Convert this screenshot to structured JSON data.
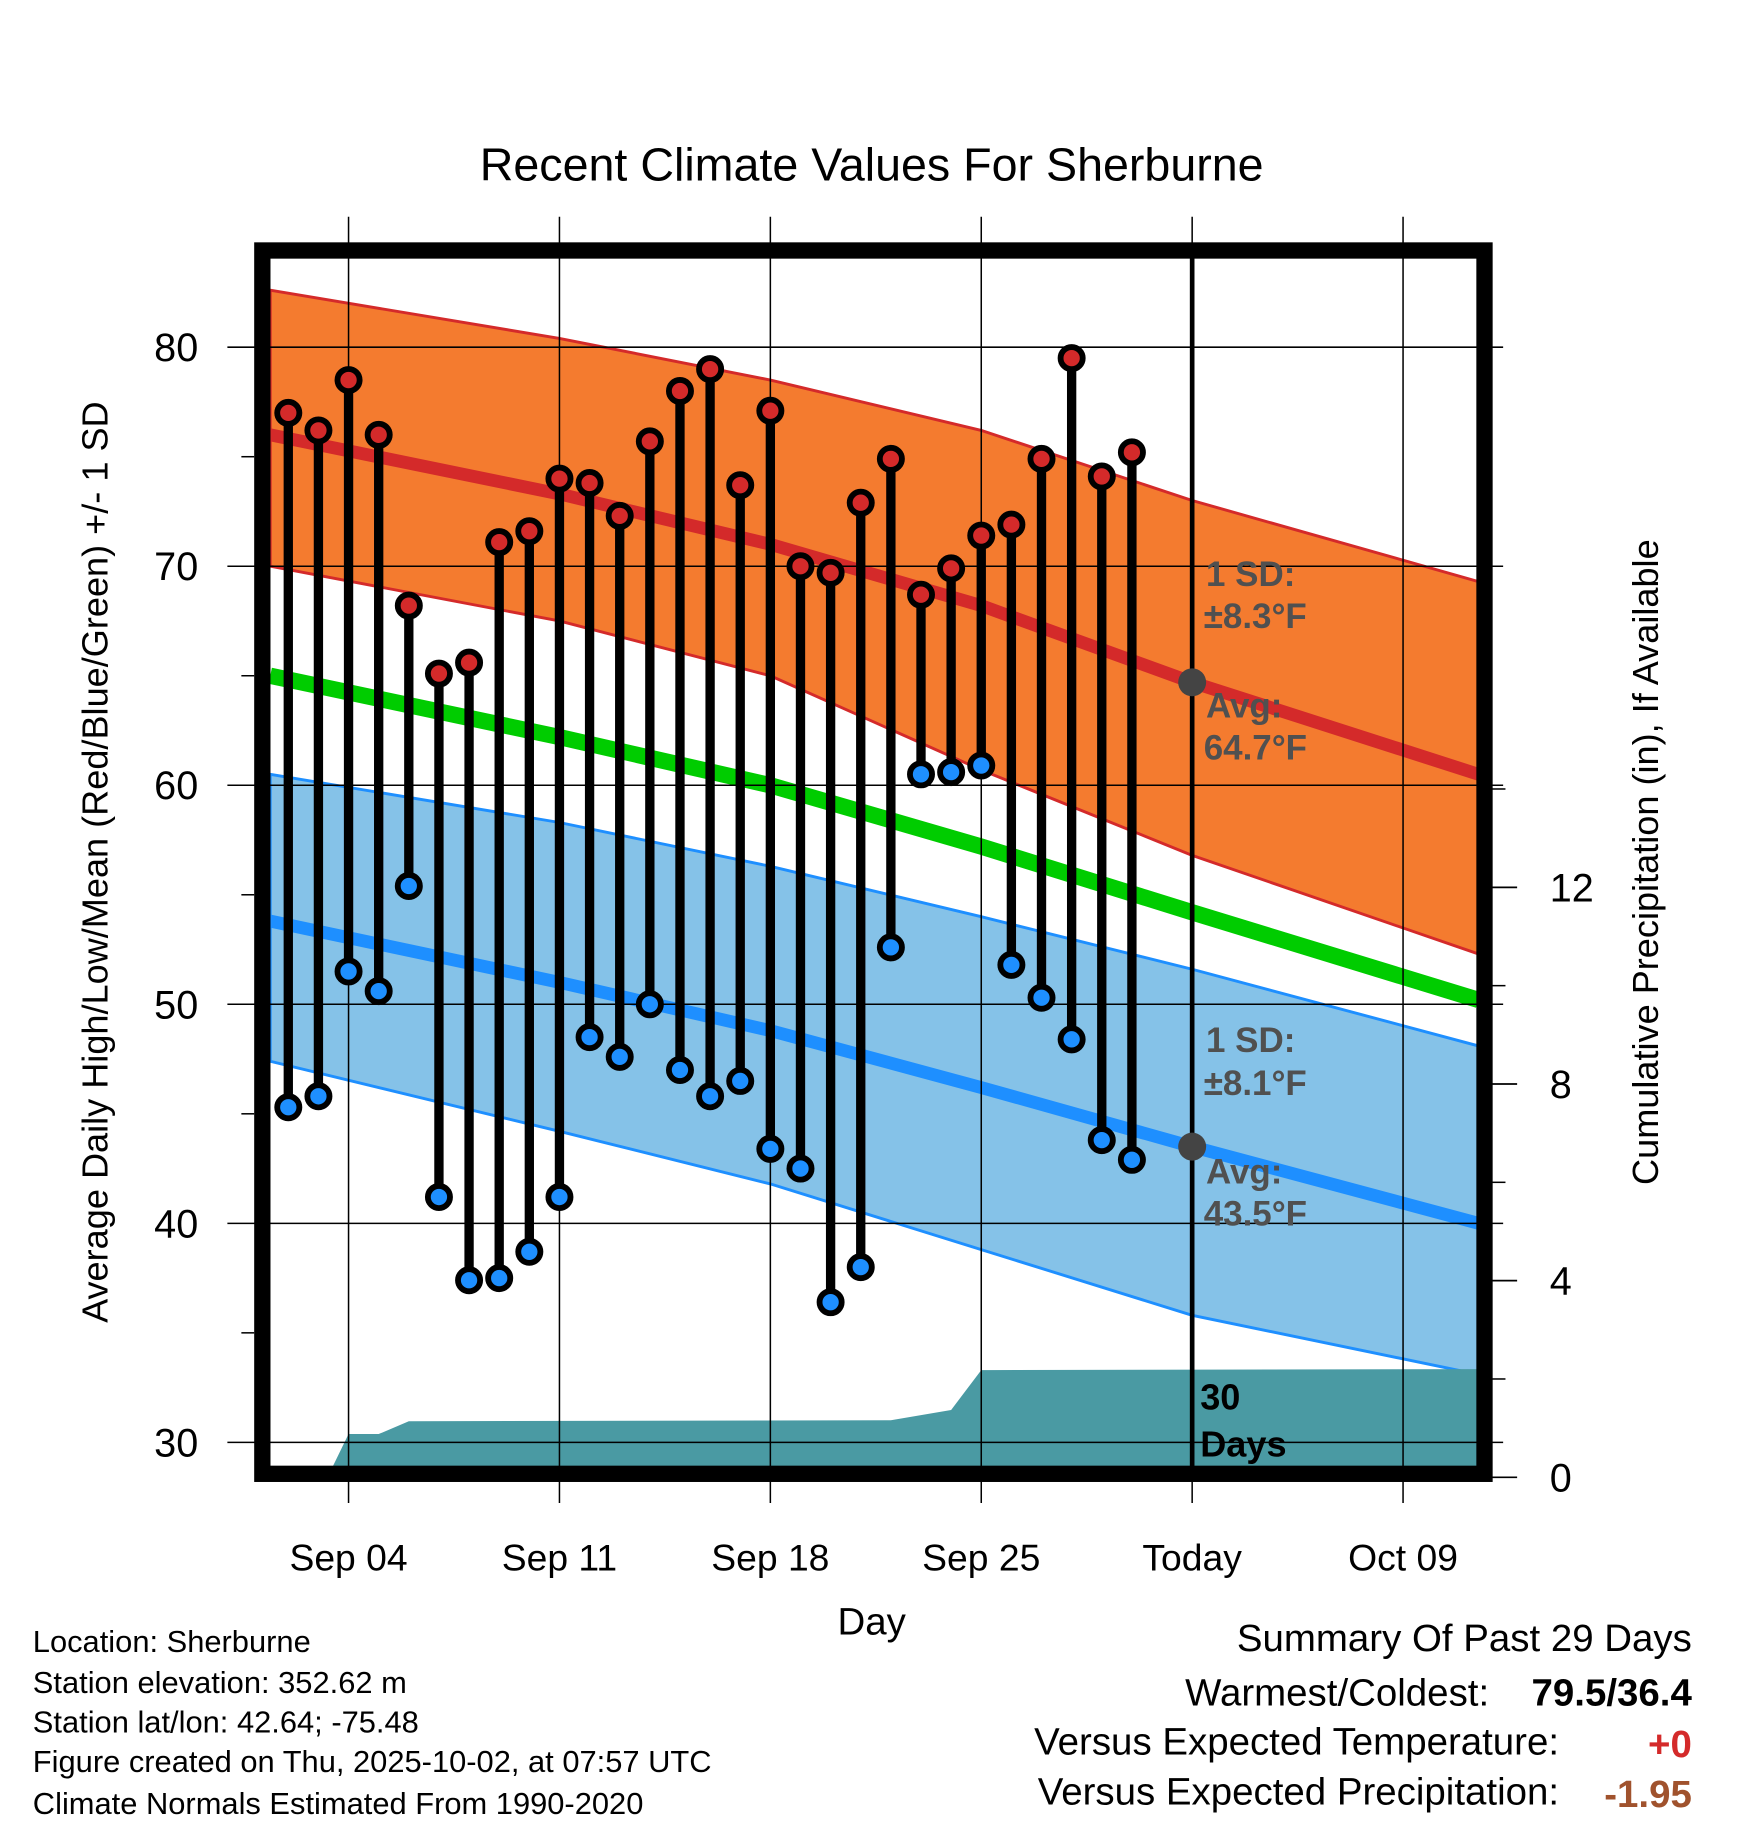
{
  "chart_data": {
    "type": "line",
    "title": "Recent Climate Values For Sherburne",
    "xlabel": "Day",
    "ylabel": "Average Daily High/Low/Mean (Red/Blue/Green) +/- 1 SD",
    "y2label": "Cumulative Precipitation (in), If Available",
    "x_units": "day of period (1 = Sep 01)",
    "xlim": [
      1.4,
      41.5
    ],
    "ylim": [
      28.8,
      84.7
    ],
    "y2lim": [
      0,
      16
    ],
    "x_ticks": [
      {
        "d": 4,
        "label": "Sep 04"
      },
      {
        "d": 11,
        "label": "Sep 11"
      },
      {
        "d": 18,
        "label": "Sep 18"
      },
      {
        "d": 25,
        "label": "Sep 25"
      },
      {
        "d": 32,
        "label": "Today"
      },
      {
        "d": 39,
        "label": "Oct 09"
      }
    ],
    "y_ticks": [
      "30",
      "40",
      "50",
      "60",
      "70",
      "80"
    ],
    "y2_ticks": [
      "0",
      "4",
      "8",
      "12"
    ],
    "grid": true,
    "days": [
      2,
      3,
      4,
      5,
      6,
      7,
      8,
      9,
      10,
      11,
      12,
      13,
      14,
      15,
      16,
      17,
      18,
      19,
      20,
      21,
      22,
      23,
      24,
      25,
      26,
      27,
      28,
      29,
      30
    ],
    "series": [
      {
        "name": "Daily High",
        "color": "#d42a2a",
        "values": [
          77.0,
          76.2,
          78.5,
          76.0,
          68.2,
          65.1,
          65.6,
          71.1,
          71.6,
          74.0,
          73.8,
          72.3,
          75.7,
          78.0,
          79.0,
          73.7,
          77.1,
          70.0,
          69.7,
          72.9,
          74.9,
          68.7,
          69.9,
          71.4,
          71.9,
          74.9,
          79.5,
          74.1,
          75.2
        ]
      },
      {
        "name": "Daily Low",
        "color": "#1e8fff",
        "values": [
          45.3,
          45.8,
          51.5,
          50.6,
          55.4,
          41.2,
          37.4,
          37.5,
          38.7,
          41.2,
          48.5,
          47.6,
          50.0,
          47.0,
          45.8,
          46.5,
          43.4,
          42.5,
          36.4,
          38.0,
          52.6,
          60.5,
          60.6,
          60.9,
          51.8,
          50.3,
          48.4,
          43.8,
          42.9
        ]
      }
    ],
    "normals": {
      "days": [
        1.4,
        11,
        18,
        25,
        32,
        41.5
      ],
      "high_mean": [
        76.0,
        73.3,
        71.0,
        68.2,
        64.7,
        60.5
      ],
      "high_upper": [
        82.6,
        80.4,
        78.5,
        76.2,
        73.0,
        69.3
      ],
      "high_lower": [
        70.0,
        67.5,
        65.0,
        60.7,
        56.8,
        52.3
      ],
      "overall_mean": [
        65.0,
        62.2,
        60.0,
        57.2,
        54.2,
        50.2
      ],
      "low_mean": [
        53.8,
        51.0,
        48.8,
        46.2,
        43.5,
        40.0
      ],
      "low_upper": [
        60.5,
        58.3,
        56.3,
        54.0,
        51.6,
        48.1
      ],
      "low_lower": [
        47.4,
        44.2,
        41.8,
        38.8,
        35.8,
        33.1
      ]
    },
    "precipitation": {
      "color": "#4a9aa3",
      "days": [
        3.3,
        4,
        5,
        6,
        22,
        24,
        25,
        41.5
      ],
      "values": [
        0,
        0.88,
        0.88,
        1.14,
        1.16,
        1.37,
        2.18,
        2.2
      ]
    },
    "today_markers": {
      "high_avg": 64.7,
      "low_avg": 43.5
    },
    "annotations": {
      "high_sd_label": "1 SD:",
      "high_sd_value": "±8.3°F",
      "high_avg_label": "Avg:",
      "high_avg_value": "64.7°F",
      "low_sd_label": "1 SD:",
      "low_sd_value": "±8.1°F",
      "low_avg_label": "Avg:",
      "low_avg_value": "43.5°F",
      "period_num": "30",
      "period_unit": "Days"
    },
    "colors": {
      "high_band": "#f47b2f",
      "high_line": "#d42a2a",
      "mean_line": "#00cc00",
      "low_band": "#85c2e8",
      "low_line": "#1e8fff",
      "marker": "#444444"
    }
  },
  "footer": {
    "location": "Location: Sherburne",
    "elevation": "Station elevation: 352.62 m",
    "latlon": "Station lat/lon: 42.64; -75.48",
    "created": "Figure created on Thu, 2025-10-02, at 07:57 UTC",
    "normals": "Climate Normals Estimated From 1990-2020"
  },
  "summary": {
    "title": "Summary Of Past 29 Days",
    "warm_cold_label": "Warmest/Coldest:",
    "warm_cold_value": "79.5/36.4",
    "temp_label": "Versus Expected Temperature:",
    "temp_value": "+0",
    "temp_color": "#d42a2a",
    "precip_label": "Versus Expected Precipitation:",
    "precip_value": "-1.95",
    "precip_color": "#a0522d"
  }
}
